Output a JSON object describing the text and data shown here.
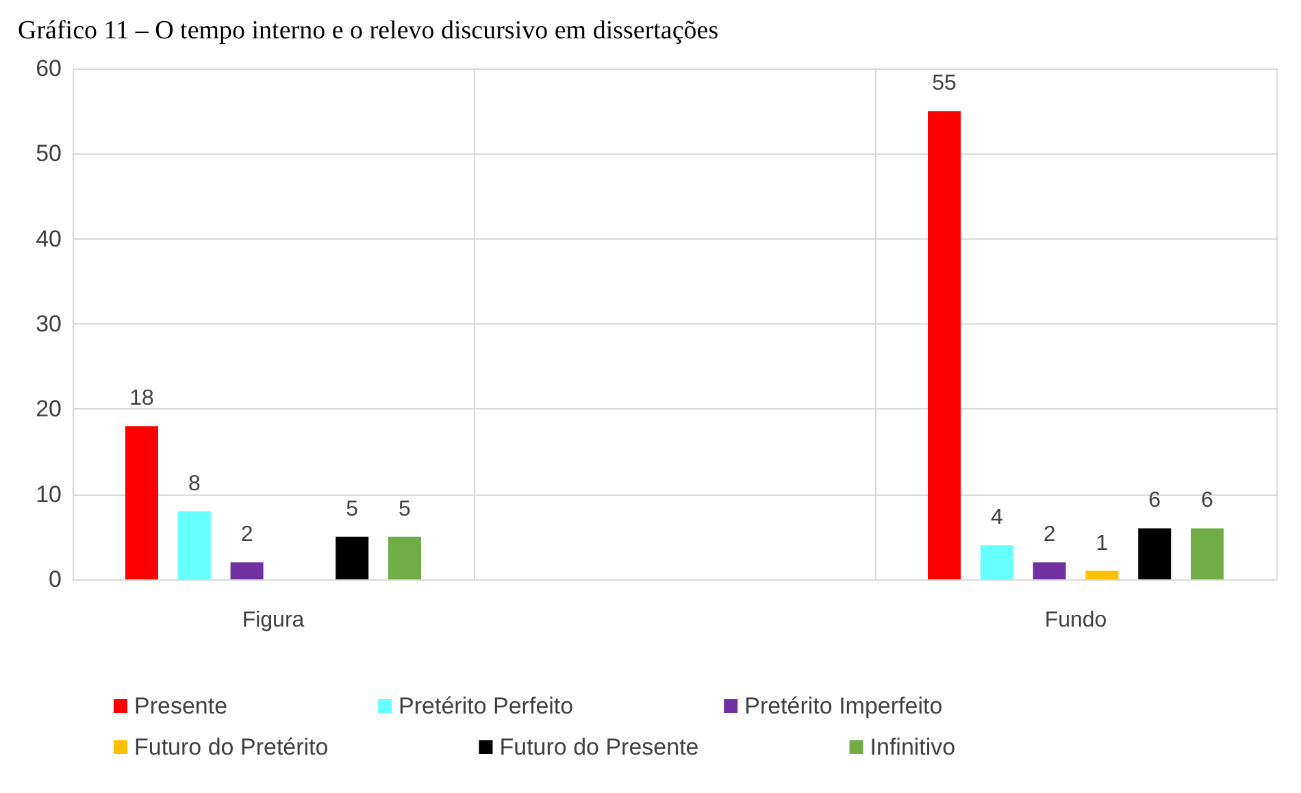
{
  "chart_data": {
    "type": "bar",
    "title": "Gráfico 11 – O tempo interno e o relevo discursivo em dissertações",
    "categories": [
      "Figura",
      null,
      "Fundo"
    ],
    "series": [
      {
        "name": "Presente",
        "color": "#ff0000",
        "values": [
          18,
          null,
          55
        ]
      },
      {
        "name": "Pretérito Perfeito",
        "color": "#66ffff",
        "values": [
          8,
          null,
          4
        ]
      },
      {
        "name": "Pretérito Imperfeito",
        "color": "#7030a0",
        "values": [
          2,
          null,
          2
        ]
      },
      {
        "name": "Futuro do Pretérito",
        "color": "#ffc000",
        "values": [
          null,
          null,
          1
        ]
      },
      {
        "name": "Futuro do Presente",
        "color": "#000000",
        "values": [
          5,
          null,
          6
        ]
      },
      {
        "name": "Infinitivo",
        "color": "#70ad47",
        "values": [
          5,
          null,
          6
        ]
      }
    ],
    "ylim": [
      0,
      60
    ],
    "yticks": [
      0,
      10,
      20,
      30,
      40,
      50,
      60
    ],
    "grid": true,
    "legend": "bottom",
    "data_labels": true
  }
}
